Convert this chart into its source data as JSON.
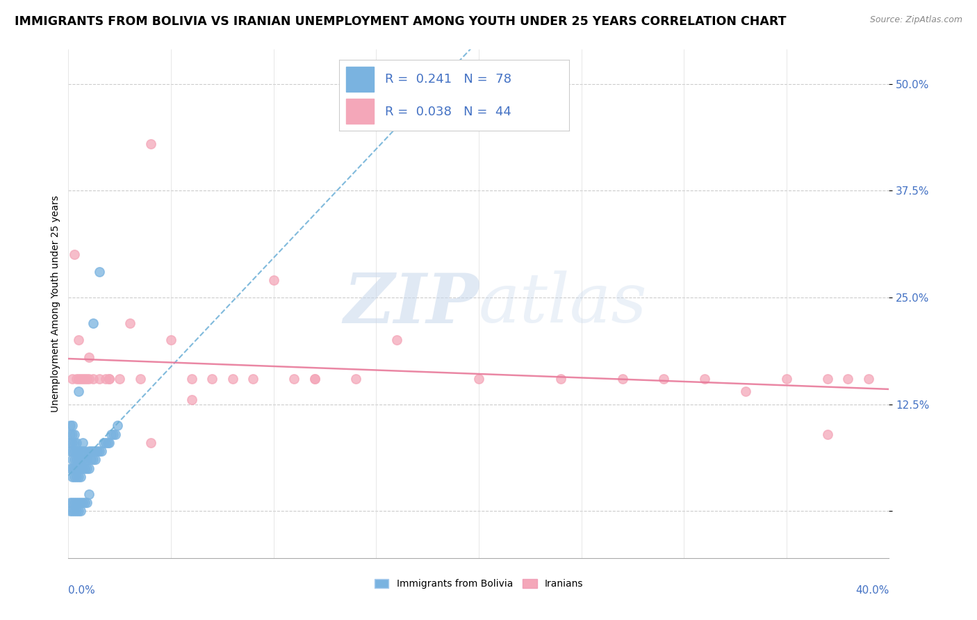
{
  "title": "IMMIGRANTS FROM BOLIVIA VS IRANIAN UNEMPLOYMENT AMONG YOUTH UNDER 25 YEARS CORRELATION CHART",
  "source": "Source: ZipAtlas.com",
  "ylabel": "Unemployment Among Youth under 25 years",
  "yticks": [
    0.0,
    0.125,
    0.25,
    0.375,
    0.5
  ],
  "ytick_labels": [
    "",
    "12.5%",
    "25.0%",
    "37.5%",
    "50.0%"
  ],
  "xlim": [
    0.0,
    0.4
  ],
  "ylim": [
    -0.055,
    0.54
  ],
  "legend1_r": "0.241",
  "legend1_n": "78",
  "legend2_r": "0.038",
  "legend2_n": "44",
  "legend_label1": "Immigrants from Bolivia",
  "legend_label2": "Iranians",
  "blue_color": "#7ab3e0",
  "pink_color": "#f4a7b9",
  "blue_line_color": "#6aaed6",
  "pink_line_color": "#e87a9a",
  "watermark_zip": "ZIP",
  "watermark_atlas": "atlas",
  "title_fontsize": 12.5,
  "axis_label_fontsize": 10,
  "tick_fontsize": 11,
  "blue_x": [
    0.001,
    0.001,
    0.001,
    0.001,
    0.001,
    0.002,
    0.002,
    0.002,
    0.002,
    0.002,
    0.002,
    0.002,
    0.003,
    0.003,
    0.003,
    0.003,
    0.003,
    0.003,
    0.004,
    0.004,
    0.004,
    0.004,
    0.004,
    0.005,
    0.005,
    0.005,
    0.005,
    0.005,
    0.006,
    0.006,
    0.006,
    0.006,
    0.007,
    0.007,
    0.007,
    0.007,
    0.008,
    0.008,
    0.008,
    0.009,
    0.009,
    0.01,
    0.01,
    0.011,
    0.011,
    0.012,
    0.012,
    0.013,
    0.013,
    0.014,
    0.015,
    0.016,
    0.017,
    0.018,
    0.019,
    0.02,
    0.021,
    0.022,
    0.023,
    0.024,
    0.001,
    0.001,
    0.002,
    0.002,
    0.003,
    0.003,
    0.004,
    0.004,
    0.005,
    0.005,
    0.006,
    0.006,
    0.007,
    0.008,
    0.009,
    0.01,
    0.012,
    0.015
  ],
  "blue_y": [
    0.05,
    0.07,
    0.08,
    0.09,
    0.1,
    0.04,
    0.05,
    0.06,
    0.07,
    0.08,
    0.09,
    0.1,
    0.04,
    0.05,
    0.06,
    0.07,
    0.08,
    0.09,
    0.04,
    0.05,
    0.06,
    0.07,
    0.08,
    0.04,
    0.05,
    0.06,
    0.07,
    0.14,
    0.04,
    0.05,
    0.06,
    0.07,
    0.05,
    0.06,
    0.07,
    0.08,
    0.05,
    0.06,
    0.07,
    0.05,
    0.06,
    0.05,
    0.07,
    0.06,
    0.07,
    0.06,
    0.07,
    0.06,
    0.07,
    0.07,
    0.07,
    0.07,
    0.08,
    0.08,
    0.08,
    0.08,
    0.09,
    0.09,
    0.09,
    0.1,
    0.0,
    0.01,
    0.0,
    0.01,
    0.0,
    0.01,
    0.0,
    0.01,
    0.0,
    0.01,
    0.0,
    0.01,
    0.01,
    0.01,
    0.01,
    0.02,
    0.22,
    0.28
  ],
  "pink_x": [
    0.002,
    0.003,
    0.004,
    0.005,
    0.006,
    0.007,
    0.008,
    0.009,
    0.01,
    0.012,
    0.015,
    0.018,
    0.02,
    0.025,
    0.03,
    0.035,
    0.04,
    0.05,
    0.06,
    0.07,
    0.08,
    0.09,
    0.1,
    0.11,
    0.12,
    0.14,
    0.16,
    0.2,
    0.24,
    0.27,
    0.29,
    0.31,
    0.33,
    0.35,
    0.37,
    0.37,
    0.38,
    0.39,
    0.005,
    0.01,
    0.02,
    0.04,
    0.06,
    0.12
  ],
  "pink_y": [
    0.155,
    0.3,
    0.155,
    0.2,
    0.155,
    0.155,
    0.155,
    0.155,
    0.155,
    0.155,
    0.155,
    0.155,
    0.155,
    0.155,
    0.22,
    0.155,
    0.43,
    0.2,
    0.155,
    0.155,
    0.155,
    0.155,
    0.27,
    0.155,
    0.155,
    0.155,
    0.2,
    0.155,
    0.155,
    0.155,
    0.155,
    0.155,
    0.14,
    0.155,
    0.09,
    0.155,
    0.155,
    0.155,
    0.155,
    0.18,
    0.155,
    0.08,
    0.13,
    0.155
  ]
}
